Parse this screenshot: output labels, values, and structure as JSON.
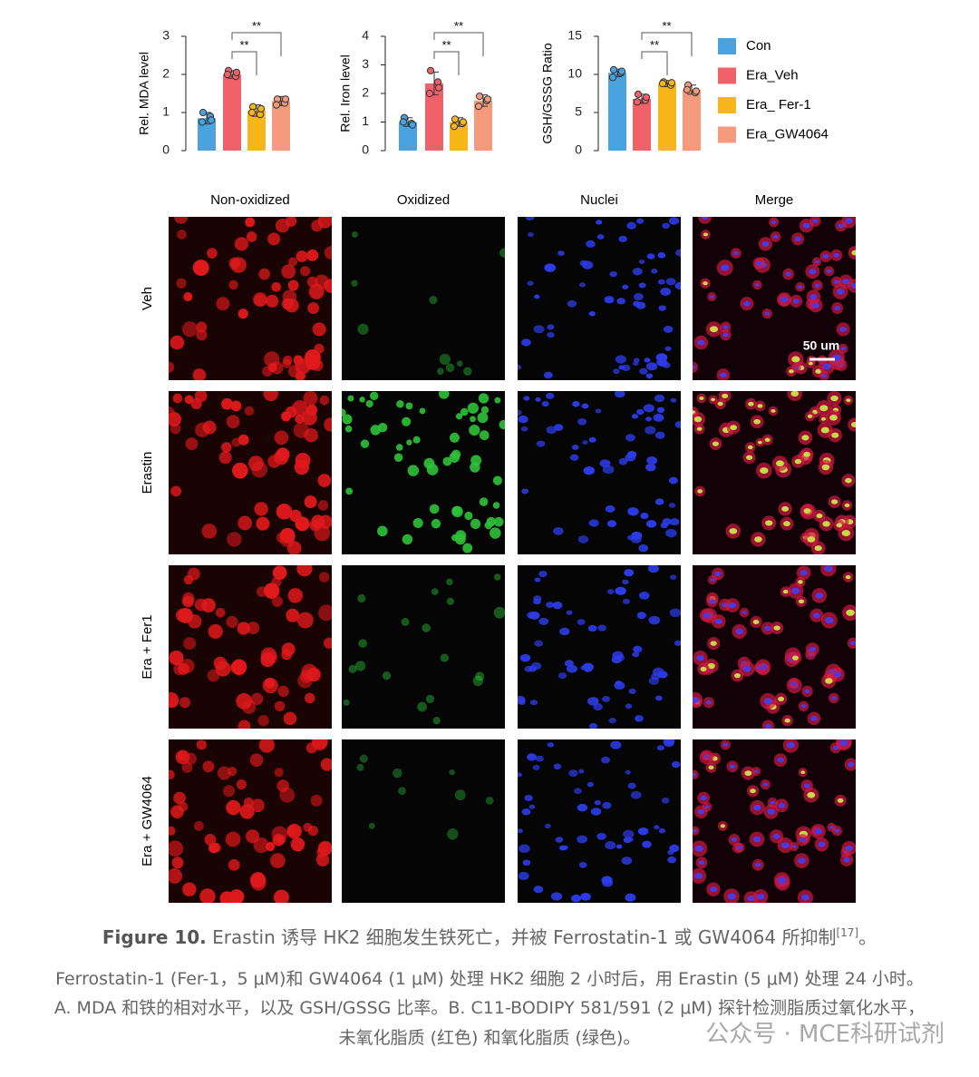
{
  "chart_data": [
    {
      "type": "bar",
      "y_label": "Rel. MDA level",
      "ylim": [
        0,
        3
      ],
      "yticks": [
        0,
        1,
        2,
        3
      ],
      "colors": [
        "#4aa3df",
        "#f0616a",
        "#f7b718",
        "#f59a7c"
      ],
      "values": [
        0.85,
        2.0,
        1.05,
        1.3
      ],
      "errors": [
        0.15,
        0.1,
        0.15,
        0.12
      ],
      "points": [
        [
          1.0,
          0.9,
          0.75,
          0.8
        ],
        [
          2.1,
          1.95,
          2.0,
          2.05
        ],
        [
          1.15,
          0.95,
          1.0,
          1.1
        ],
        [
          1.35,
          1.25,
          1.2,
          1.35
        ]
      ],
      "annotations": [
        "**",
        "**"
      ]
    },
    {
      "type": "bar",
      "y_label": "Rel. Iron level",
      "ylim": [
        0,
        4
      ],
      "yticks": [
        0,
        1,
        2,
        3,
        4
      ],
      "colors": [
        "#4aa3df",
        "#f0616a",
        "#f7b718",
        "#f59a7c"
      ],
      "values": [
        1.0,
        2.35,
        1.0,
        1.75
      ],
      "errors": [
        0.15,
        0.4,
        0.15,
        0.2
      ],
      "points": [
        [
          1.15,
          0.95,
          1.0,
          0.9
        ],
        [
          2.8,
          2.4,
          2.0,
          2.2
        ],
        [
          1.1,
          0.95,
          0.85,
          1.0
        ],
        [
          1.9,
          1.75,
          1.55,
          1.8
        ]
      ],
      "annotations": [
        "**",
        "**"
      ]
    },
    {
      "type": "bar",
      "y_label": "GSH/GSSG Ratio",
      "ylim": [
        0,
        15
      ],
      "yticks": [
        0,
        5,
        10,
        15
      ],
      "categories": [
        "Con",
        "Era_Veh",
        "Era_ Fer-1",
        "Era_GW4064"
      ],
      "colors": [
        "#4aa3df",
        "#f0616a",
        "#f7b718",
        "#f59a7c"
      ],
      "values": [
        10.2,
        6.8,
        8.8,
        8.0
      ],
      "errors": [
        0.5,
        0.6,
        0.4,
        0.6
      ],
      "points": [
        [
          10.6,
          10.2,
          9.6,
          10.4
        ],
        [
          7.4,
          6.6,
          6.4,
          7.0
        ],
        [
          9.0,
          8.6,
          8.8,
          8.9
        ],
        [
          8.6,
          7.6,
          8.0,
          7.8
        ]
      ],
      "annotations": [
        "**",
        "**"
      ],
      "legend": "right"
    }
  ],
  "images": {
    "columns": [
      "Non-oxidized",
      "Oxidized",
      "Nuclei",
      "Merge"
    ],
    "rows": [
      "Veh",
      "Erastin",
      "Era + Fer1",
      "Era + GW4064"
    ],
    "scale_bar": "50 um"
  },
  "caption": {
    "label": "Figure 10.",
    "text": "Erastin 诱导 HK2 细胞发生铁死亡，并被 Ferrostatin-1 或 GW4064 所抑制",
    "ref": "[17]",
    "end": "。",
    "lines": [
      "Ferrostatin-1 (Fer-1，5 μM)和 GW4064 (1 μM) 处理 HK2 细胞 2 小时后，用 Erastin (5 μM) 处理 24 小时。",
      "A. MDA 和铁的相对水平，以及 GSH/GSSG 比率。B. C11-BODIPY 581/591 (2 μM) 探针检测脂质过氧化水平，",
      "未氧化脂质 (红色) 和氧化脂质 (绿色)。"
    ]
  },
  "watermark": "公众号 · MCE科研试剂"
}
